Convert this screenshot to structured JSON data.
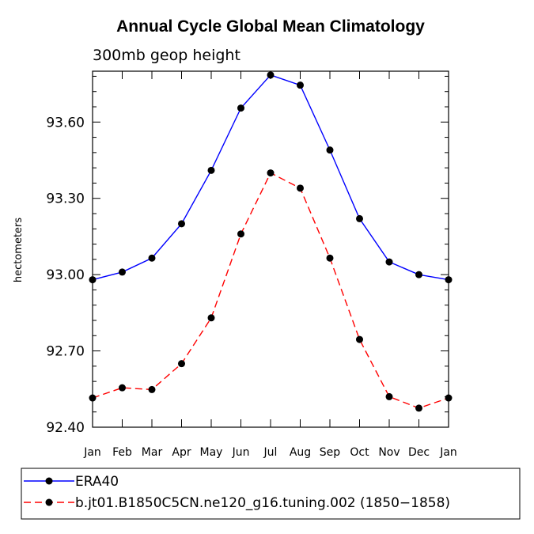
{
  "chart_data": {
    "type": "line",
    "title": "Annual Cycle Global Mean Climatology",
    "subtitle": "300mb geop height",
    "ylabel": "hectometers",
    "ylim": [
      92.4,
      93.8
    ],
    "yticks": [
      "92.40",
      "92.70",
      "93.00",
      "93.30",
      "93.60"
    ],
    "categories": [
      "Jan",
      "Feb",
      "Mar",
      "Apr",
      "May",
      "Jun",
      "Jul",
      "Aug",
      "Sep",
      "Oct",
      "Nov",
      "Dec",
      "Jan"
    ],
    "grid": false,
    "legend_position": "bottom",
    "series": [
      {
        "name": "ERA40",
        "color": "#0000ff",
        "dash": "solid",
        "values": [
          92.98,
          93.01,
          93.065,
          93.2,
          93.41,
          93.655,
          93.785,
          93.745,
          93.49,
          93.22,
          93.05,
          93.0,
          92.98
        ]
      },
      {
        "name": "b.jt01.B1850C5CN.ne120_g16.tuning.002 (1850−1858)",
        "color": "#ff0000",
        "dash": "dashed",
        "values": [
          92.515,
          92.555,
          92.548,
          92.65,
          92.83,
          93.16,
          93.4,
          93.34,
          93.065,
          92.745,
          92.52,
          92.475,
          92.515
        ]
      }
    ]
  }
}
